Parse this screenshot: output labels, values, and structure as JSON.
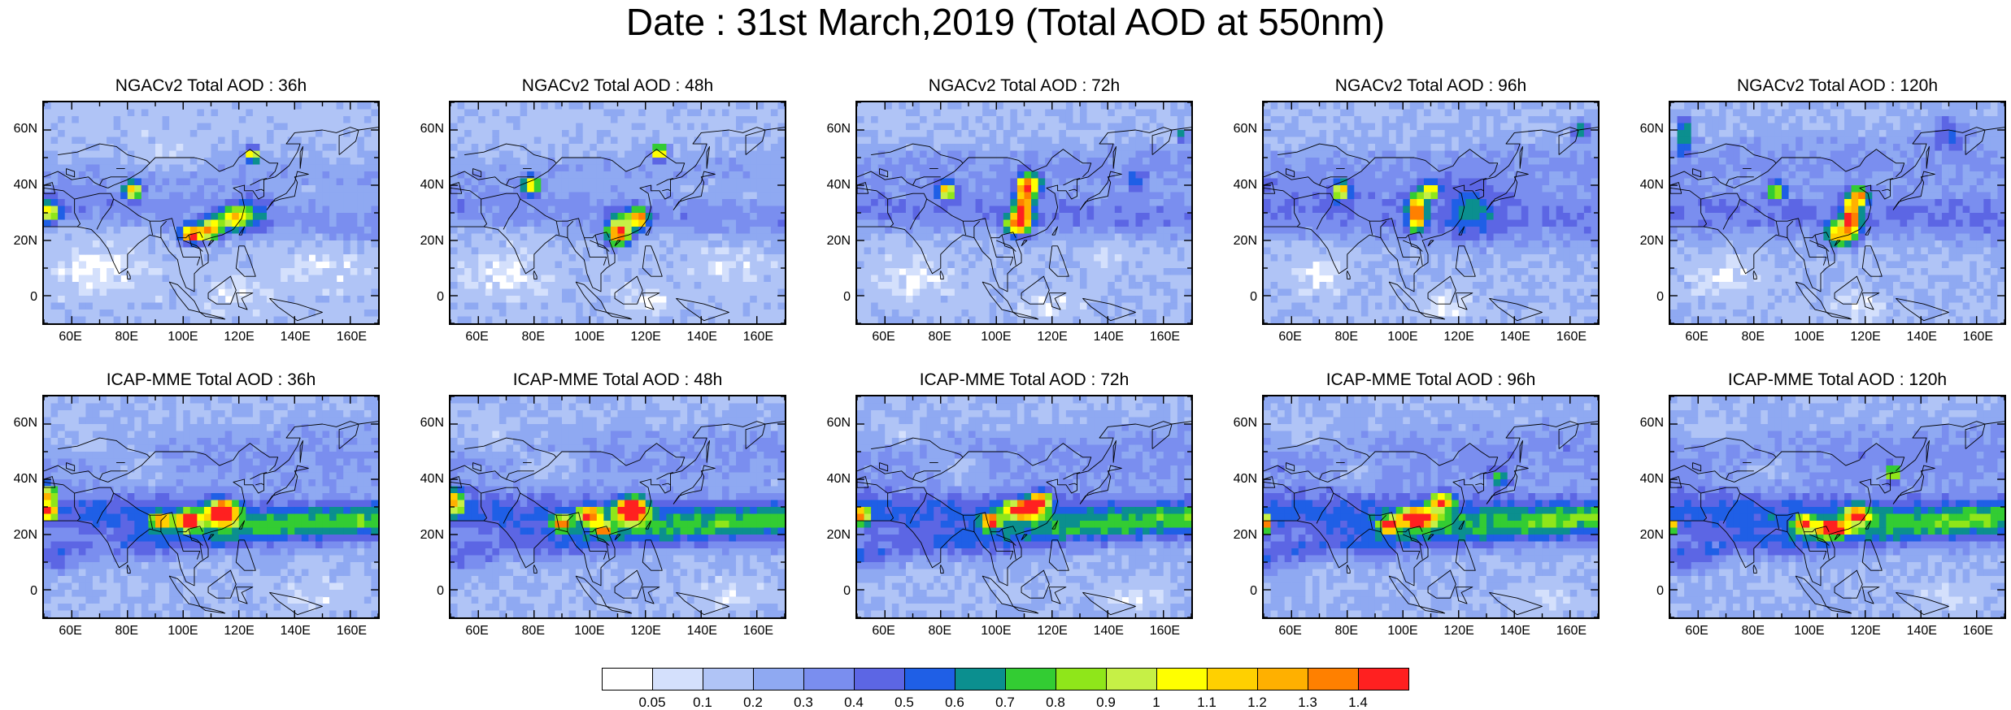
{
  "title": "Date : 31st March,2019 (Total AOD at 550nm)",
  "panels": [
    {
      "title": "NGACv2 Total AOD : 36h"
    },
    {
      "title": "NGACv2 Total AOD : 48h"
    },
    {
      "title": "NGACv2 Total AOD : 72h"
    },
    {
      "title": "NGACv2 Total AOD : 96h"
    },
    {
      "title": "NGACv2 Total AOD : 120h"
    },
    {
      "title": "ICAP-MME Total AOD : 36h"
    },
    {
      "title": "ICAP-MME Total AOD : 48h"
    },
    {
      "title": "ICAP-MME Total AOD : 72h"
    },
    {
      "title": "ICAP-MME Total AOD : 96h"
    },
    {
      "title": "ICAP-MME Total AOD : 120h"
    }
  ],
  "lat_ticks": [
    "60N",
    "40N",
    "20N",
    "0"
  ],
  "lon_ticks": [
    "60E",
    "80E",
    "100E",
    "120E",
    "140E",
    "160E"
  ],
  "colorbar": {
    "labels": [
      "0.05",
      "0.1",
      "0.2",
      "0.3",
      "0.4",
      "0.5",
      "0.6",
      "0.7",
      "0.8",
      "0.9",
      "1",
      "1.1",
      "1.2",
      "1.3",
      "1.4"
    ],
    "colors": [
      "#ffffff",
      "#d4e0fc",
      "#b0c4f6",
      "#8fa9f2",
      "#7a8eef",
      "#5c66e4",
      "#1f5fe6",
      "#0b8f8f",
      "#33cc33",
      "#8fe61a",
      "#c6f046",
      "#ffff00",
      "#ffd000",
      "#ffb000",
      "#ff8000",
      "#ff2020"
    ]
  }
}
